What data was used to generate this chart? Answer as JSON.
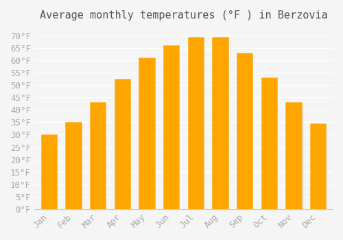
{
  "title": "Average monthly temperatures (°F ) in Berzovia",
  "months": [
    "Jan",
    "Feb",
    "Mar",
    "Apr",
    "May",
    "Jun",
    "Jul",
    "Aug",
    "Sep",
    "Oct",
    "Nov",
    "Dec"
  ],
  "values": [
    30,
    35,
    43,
    52.5,
    61,
    66,
    69.5,
    69.5,
    63,
    53,
    43,
    34.5
  ],
  "bar_color": "#FFA500",
  "bar_edge_color": "#FFB833",
  "ylim": [
    0,
    73
  ],
  "yticks": [
    0,
    5,
    10,
    15,
    20,
    25,
    30,
    35,
    40,
    45,
    50,
    55,
    60,
    65,
    70
  ],
  "ytick_labels": [
    "0°F",
    "5°F",
    "10°F",
    "15°F",
    "20°F",
    "25°F",
    "30°F",
    "35°F",
    "40°F",
    "45°F",
    "50°F",
    "55°F",
    "60°F",
    "65°F",
    "70°F"
  ],
  "title_fontsize": 11,
  "tick_fontsize": 9,
  "background_color": "#f5f5f5",
  "grid_color": "#ffffff"
}
